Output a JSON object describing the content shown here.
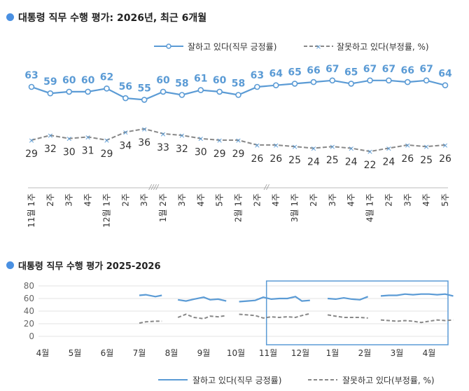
{
  "colors": {
    "approve": "#5b9bd5",
    "disapprove": "#888888",
    "accent_dot": "#4a90e2",
    "highlight_box": "#5b9bd5"
  },
  "chart_data": [
    {
      "type": "line",
      "title": "대통령 직무 수행 평가: 2026년, 최근 6개월",
      "categories": [
        "11월 1주",
        "2주",
        "3주",
        "4주",
        "12월 1주",
        "2주",
        "3주",
        "1월 2주",
        "3주",
        "4주",
        "5주",
        "2월 1주",
        "2주",
        "4주",
        "3월 1주",
        "2주",
        "3주",
        "4주",
        "4월 1주",
        "2주",
        "3주",
        "4주",
        "5주"
      ],
      "break_marks": [
        {
          "after_index": 6,
          "label": "////"
        },
        {
          "after_index": 12,
          "label": "//"
        }
      ],
      "series": [
        {
          "name": "잘하고 있다(직무 긍정률)",
          "values": [
            63,
            59,
            60,
            60,
            62,
            56,
            55,
            60,
            58,
            61,
            60,
            58,
            63,
            64,
            65,
            66,
            67,
            65,
            67,
            67,
            66,
            67,
            64
          ]
        },
        {
          "name": "잘못하고 있다(부정률, %)",
          "values": [
            29,
            32,
            30,
            31,
            29,
            34,
            36,
            33,
            32,
            30,
            29,
            29,
            26,
            26,
            25,
            24,
            25,
            24,
            22,
            24,
            26,
            25,
            26
          ]
        }
      ]
    },
    {
      "type": "line",
      "title": "대통령 직무 수행 평가 2025-2026",
      "x_labels": [
        "4월",
        "5월",
        "6월",
        "7월",
        "8월",
        "9월",
        "10월",
        "11월",
        "12월",
        "1월",
        "2월",
        "3월",
        "4월"
      ],
      "y_ticks": [
        0,
        20,
        40,
        60,
        80
      ],
      "ylim": [
        0,
        80
      ],
      "grid": true,
      "highlight": {
        "from_month": "11월",
        "to_month": "4월"
      },
      "series": [
        {
          "name": "잘하고 있다(직무 긍정률)",
          "segments": [
            [
              [
                7.0,
                65
              ],
              [
                7.2,
                66
              ],
              [
                7.5,
                63
              ],
              [
                7.7,
                65
              ]
            ],
            [
              [
                8.2,
                58
              ],
              [
                8.45,
                56
              ],
              [
                8.7,
                59
              ],
              [
                9.0,
                62
              ],
              [
                9.2,
                58
              ],
              [
                9.45,
                59
              ],
              [
                9.7,
                56
              ]
            ],
            [
              [
                10.1,
                55
              ],
              [
                10.35,
                56
              ],
              [
                10.6,
                57
              ],
              [
                10.85,
                62
              ],
              [
                11.1,
                59
              ],
              [
                11.35,
                60
              ],
              [
                11.6,
                60
              ],
              [
                11.85,
                63
              ],
              [
                12.05,
                56
              ],
              [
                12.3,
                57
              ]
            ],
            [
              [
                12.85,
                60
              ],
              [
                13.1,
                59
              ],
              [
                13.35,
                61
              ],
              [
                13.6,
                59
              ],
              [
                13.85,
                58
              ],
              [
                14.1,
                63
              ]
            ],
            [
              [
                14.5,
                64
              ],
              [
                14.75,
                65
              ],
              [
                15.0,
                65
              ],
              [
                15.25,
                67
              ],
              [
                15.5,
                66
              ],
              [
                15.75,
                67
              ],
              [
                16.0,
                67
              ],
              [
                16.25,
                66
              ],
              [
                16.5,
                67
              ],
              [
                16.75,
                64
              ]
            ]
          ]
        },
        {
          "name": "잘못하고 있다(부정률, %)",
          "segments": [
            [
              [
                7.0,
                21
              ],
              [
                7.2,
                23
              ],
              [
                7.5,
                24
              ],
              [
                7.7,
                24
              ]
            ],
            [
              [
                8.2,
                30
              ],
              [
                8.45,
                35
              ],
              [
                8.7,
                30
              ],
              [
                9.0,
                28
              ],
              [
                9.2,
                32
              ],
              [
                9.45,
                31
              ],
              [
                9.7,
                33
              ]
            ],
            [
              [
                10.1,
                35
              ],
              [
                10.35,
                34
              ],
              [
                10.6,
                33
              ],
              [
                10.85,
                29
              ],
              [
                11.1,
                31
              ],
              [
                11.35,
                30
              ],
              [
                11.6,
                31
              ],
              [
                11.85,
                30
              ],
              [
                12.05,
                33
              ],
              [
                12.3,
                36
              ]
            ],
            [
              [
                12.85,
                34
              ],
              [
                13.1,
                32
              ],
              [
                13.35,
                30
              ],
              [
                13.6,
                30
              ],
              [
                13.85,
                30
              ],
              [
                14.1,
                29
              ]
            ],
            [
              [
                14.5,
                26
              ],
              [
                14.75,
                25
              ],
              [
                15.0,
                24
              ],
              [
                15.25,
                25
              ],
              [
                15.5,
                24
              ],
              [
                15.75,
                22
              ],
              [
                16.0,
                24
              ],
              [
                16.25,
                26
              ],
              [
                16.5,
                25
              ],
              [
                16.75,
                26
              ]
            ]
          ]
        }
      ]
    }
  ]
}
